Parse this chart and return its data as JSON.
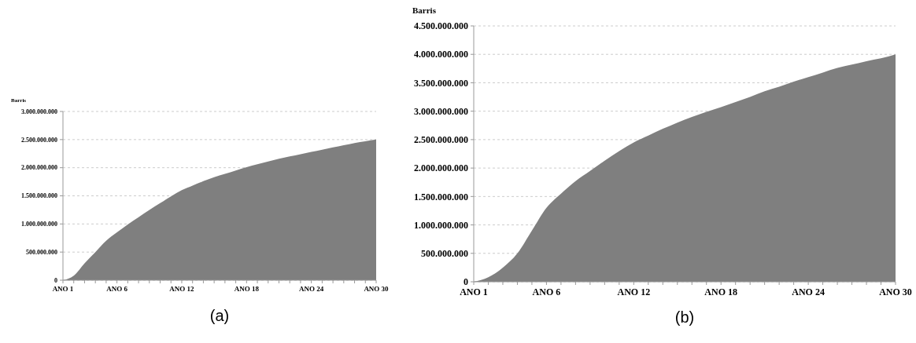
{
  "chart_data": [
    {
      "type": "area",
      "ylabel": "Barris",
      "annotations": [
        "(a)"
      ],
      "grid": "y",
      "categories": [
        "ANO 1",
        null,
        null,
        null,
        null,
        "ANO 6",
        null,
        null,
        null,
        null,
        null,
        "ANO 12",
        null,
        null,
        null,
        null,
        null,
        "ANO 18",
        null,
        null,
        null,
        null,
        null,
        "ANO 24",
        null,
        null,
        null,
        null,
        null,
        "ANO 30"
      ],
      "series": [
        {
          "color": "#7f7f7f",
          "values": [
            0,
            80000000,
            300000000,
            500000000,
            700000000,
            850000000,
            990000000,
            1120000000,
            1250000000,
            1370000000,
            1490000000,
            1600000000,
            1680000000,
            1760000000,
            1830000000,
            1890000000,
            1950000000,
            2010000000,
            2060000000,
            2110000000,
            2160000000,
            2200000000,
            2240000000,
            2280000000,
            2320000000,
            2360000000,
            2400000000,
            2440000000,
            2470000000,
            2500000000
          ]
        }
      ],
      "ylim": [
        0,
        3000000000
      ],
      "yticks": [
        {
          "value": 0,
          "label": "0"
        },
        {
          "value": 500000000,
          "label": "500.000.000"
        },
        {
          "value": 1000000000,
          "label": "1.000.000.000"
        },
        {
          "value": 1500000000,
          "label": "1.500.000.000"
        },
        {
          "value": 2000000000,
          "label": "2.000.000.000"
        },
        {
          "value": 2500000000,
          "label": "2.500.000.000"
        },
        {
          "value": 3000000000,
          "label": "3.000.000.000"
        }
      ]
    },
    {
      "type": "area",
      "ylabel": "Barris",
      "annotations": [
        "(b)"
      ],
      "grid": "y",
      "categories": [
        "ANO 1",
        null,
        null,
        null,
        null,
        "ANO 6",
        null,
        null,
        null,
        null,
        null,
        "ANO 12",
        null,
        null,
        null,
        null,
        null,
        "ANO 18",
        null,
        null,
        null,
        null,
        null,
        "ANO 24",
        null,
        null,
        null,
        null,
        null,
        "ANO 30"
      ],
      "series": [
        {
          "color": "#7f7f7f",
          "values": [
            0,
            80000000,
            250000000,
            500000000,
            900000000,
            1300000000,
            1550000000,
            1770000000,
            1950000000,
            2130000000,
            2300000000,
            2450000000,
            2570000000,
            2690000000,
            2800000000,
            2900000000,
            2990000000,
            3070000000,
            3160000000,
            3250000000,
            3350000000,
            3430000000,
            3520000000,
            3600000000,
            3680000000,
            3760000000,
            3820000000,
            3880000000,
            3930000000,
            4000000000
          ]
        }
      ],
      "ylim": [
        0,
        4500000000
      ],
      "yticks": [
        {
          "value": 0,
          "label": "0"
        },
        {
          "value": 500000000,
          "label": "500.000.000"
        },
        {
          "value": 1000000000,
          "label": "1.000.000.000"
        },
        {
          "value": 1500000000,
          "label": "1.500.000.000"
        },
        {
          "value": 2000000000,
          "label": "2.000.000.000"
        },
        {
          "value": 2500000000,
          "label": "2.500.000.000"
        },
        {
          "value": 3000000000,
          "label": "3.000.000.000"
        },
        {
          "value": 3500000000,
          "label": "3.500.000.000"
        },
        {
          "value": 4000000000,
          "label": "4.000.000.000"
        },
        {
          "value": 4500000000,
          "label": "4.500.000.000"
        }
      ]
    }
  ]
}
